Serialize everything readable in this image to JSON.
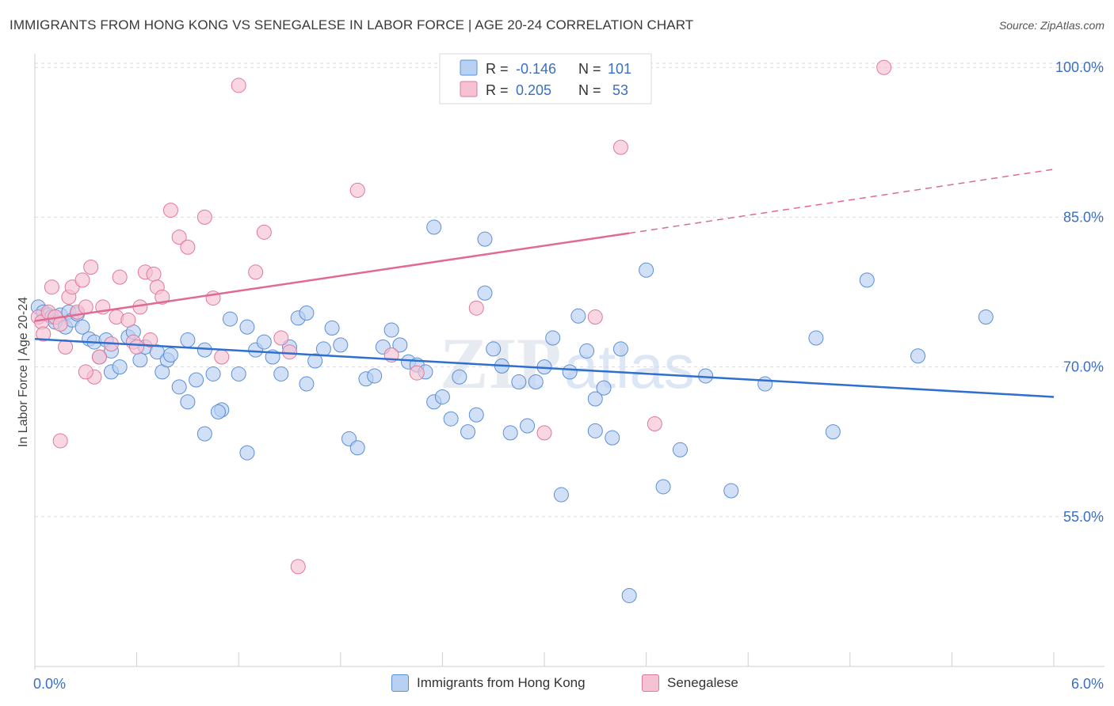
{
  "title": "IMMIGRANTS FROM HONG KONG VS SENEGALESE IN LABOR FORCE | AGE 20-24 CORRELATION CHART",
  "source": "Source: ZipAtlas.com",
  "watermark": {
    "zip": "ZIP",
    "atlas": "atlas"
  },
  "colors": {
    "blue": "#5b8fd6",
    "blue_fill": "#b8d0f2",
    "blue_line": "#2f6fcf",
    "pink": "#e0789a",
    "pink_fill": "#f6c2d3",
    "pink_line": "#e06a92",
    "axis_label": "#3a6fc4",
    "grid": "#dcdcdc"
  },
  "legend": {
    "rows": [
      {
        "r_label": "R =",
        "r_value": "-0.146",
        "n_label": "N =",
        "n_value": "101"
      },
      {
        "r_label": "R =",
        "r_value": "0.205",
        "n_label": "N =",
        "n_value": "53"
      }
    ]
  },
  "bottom_legend": [
    "Immigrants from Hong Kong",
    "Senegalese"
  ],
  "chart_data": {
    "type": "scatter",
    "title": "IMMIGRANTS FROM HONG KONG VS SENEGALESE IN LABOR FORCE | AGE 20-24 CORRELATION CHART",
    "xlabel": "",
    "ylabel": "In Labor Force | Age 20-24",
    "xlim": [
      0.0,
      6.0
    ],
    "ylim": [
      40.0,
      102.0
    ],
    "x_tick_labels": [
      "0.0%",
      "6.0%"
    ],
    "y_ticks": [
      55.0,
      70.0,
      85.0,
      100.0
    ],
    "y_tick_labels": [
      "55.0%",
      "70.0%",
      "85.0%",
      "100.0%"
    ],
    "grid": true,
    "legend_position": "top-center",
    "series": [
      {
        "name": "Immigrants from Hong Kong",
        "r": -0.146,
        "n": 101,
        "trend": {
          "x": [
            0.0,
            6.0
          ],
          "y": [
            72.8,
            67.0
          ]
        },
        "points": [
          [
            0.02,
            76.0
          ],
          [
            0.05,
            75.5
          ],
          [
            0.08,
            75.2
          ],
          [
            0.1,
            75.0
          ],
          [
            0.12,
            74.5
          ],
          [
            0.15,
            75.2
          ],
          [
            0.18,
            74.0
          ],
          [
            0.2,
            75.5
          ],
          [
            0.22,
            74.7
          ],
          [
            0.25,
            75.3
          ],
          [
            0.28,
            74.0
          ],
          [
            0.32,
            72.8
          ],
          [
            0.35,
            72.5
          ],
          [
            0.38,
            71.0
          ],
          [
            0.42,
            72.7
          ],
          [
            0.45,
            69.5
          ],
          [
            0.5,
            70.0
          ],
          [
            0.55,
            73.0
          ],
          [
            0.58,
            73.5
          ],
          [
            0.62,
            70.7
          ],
          [
            0.65,
            72.0
          ],
          [
            0.72,
            71.5
          ],
          [
            0.75,
            69.5
          ],
          [
            0.78,
            70.7
          ],
          [
            0.8,
            71.2
          ],
          [
            0.85,
            68.0
          ],
          [
            0.9,
            72.7
          ],
          [
            0.95,
            68.7
          ],
          [
            1.0,
            71.7
          ],
          [
            1.05,
            69.3
          ],
          [
            1.1,
            65.7
          ],
          [
            1.15,
            74.8
          ],
          [
            1.2,
            69.3
          ],
          [
            1.25,
            74.0
          ],
          [
            1.3,
            71.7
          ],
          [
            1.35,
            72.5
          ],
          [
            1.4,
            71.0
          ],
          [
            1.45,
            69.3
          ],
          [
            1.5,
            72.0
          ],
          [
            1.55,
            74.9
          ],
          [
            1.6,
            75.4
          ],
          [
            1.65,
            70.6
          ],
          [
            1.7,
            71.8
          ],
          [
            1.75,
            73.9
          ],
          [
            1.8,
            72.2
          ],
          [
            1.85,
            62.8
          ],
          [
            1.9,
            61.9
          ],
          [
            1.95,
            68.8
          ],
          [
            2.0,
            69.1
          ],
          [
            2.05,
            72.0
          ],
          [
            2.1,
            73.7
          ],
          [
            2.15,
            72.2
          ],
          [
            2.2,
            70.5
          ],
          [
            2.25,
            70.2
          ],
          [
            2.3,
            69.5
          ],
          [
            2.35,
            66.5
          ],
          [
            2.4,
            67.0
          ],
          [
            2.45,
            64.8
          ],
          [
            2.5,
            69.0
          ],
          [
            2.55,
            63.5
          ],
          [
            2.6,
            65.2
          ],
          [
            2.65,
            77.4
          ],
          [
            2.7,
            71.8
          ],
          [
            2.75,
            70.1
          ],
          [
            2.8,
            63.4
          ],
          [
            2.85,
            68.5
          ],
          [
            2.9,
            64.1
          ],
          [
            2.95,
            68.5
          ],
          [
            3.0,
            70.0
          ],
          [
            3.05,
            72.9
          ],
          [
            3.1,
            57.2
          ],
          [
            3.15,
            69.5
          ],
          [
            3.2,
            75.1
          ],
          [
            3.25,
            71.6
          ],
          [
            3.3,
            63.6
          ],
          [
            3.35,
            67.9
          ],
          [
            3.4,
            62.9
          ],
          [
            3.45,
            71.8
          ],
          [
            3.5,
            47.1
          ],
          [
            3.6,
            79.7
          ],
          [
            3.7,
            58.0
          ],
          [
            3.8,
            61.7
          ],
          [
            3.95,
            69.1
          ],
          [
            4.1,
            57.6
          ],
          [
            4.3,
            68.3
          ],
          [
            4.6,
            72.9
          ],
          [
            4.7,
            63.5
          ],
          [
            4.9,
            78.7
          ],
          [
            5.2,
            71.1
          ],
          [
            5.6,
            75.0
          ],
          [
            0.9,
            66.5
          ],
          [
            1.25,
            61.4
          ],
          [
            2.65,
            82.8
          ],
          [
            2.45,
            98.1
          ],
          [
            3.0,
            100.0
          ],
          [
            2.35,
            84.0
          ],
          [
            1.08,
            65.5
          ],
          [
            3.3,
            66.8
          ],
          [
            1.6,
            68.3
          ],
          [
            1.0,
            63.3
          ],
          [
            0.45,
            71.6
          ]
        ]
      },
      {
        "name": "Senegalese",
        "r": 0.205,
        "n": 53,
        "trend": {
          "x": [
            0.0,
            3.5
          ],
          "y": [
            74.6,
            83.4
          ]
        },
        "trend_extension": {
          "x": [
            3.5,
            6.0
          ],
          "y": [
            83.4,
            89.8
          ]
        },
        "points": [
          [
            0.02,
            75.0
          ],
          [
            0.04,
            74.5
          ],
          [
            0.05,
            73.3
          ],
          [
            0.08,
            75.5
          ],
          [
            0.1,
            78.0
          ],
          [
            0.12,
            75.0
          ],
          [
            0.15,
            74.3
          ],
          [
            0.18,
            72.0
          ],
          [
            0.2,
            77.0
          ],
          [
            0.22,
            78.0
          ],
          [
            0.25,
            75.5
          ],
          [
            0.28,
            78.7
          ],
          [
            0.3,
            76.0
          ],
          [
            0.33,
            80.0
          ],
          [
            0.35,
            69.0
          ],
          [
            0.38,
            71.0
          ],
          [
            0.4,
            76.0
          ],
          [
            0.45,
            72.3
          ],
          [
            0.48,
            75.0
          ],
          [
            0.5,
            79.0
          ],
          [
            0.55,
            74.7
          ],
          [
            0.58,
            72.5
          ],
          [
            0.6,
            72.0
          ],
          [
            0.62,
            76.0
          ],
          [
            0.65,
            79.5
          ],
          [
            0.68,
            72.7
          ],
          [
            0.7,
            79.3
          ],
          [
            0.72,
            78.0
          ],
          [
            0.75,
            77.0
          ],
          [
            0.8,
            85.7
          ],
          [
            0.85,
            83.0
          ],
          [
            0.9,
            82.0
          ],
          [
            1.0,
            85.0
          ],
          [
            1.05,
            76.9
          ],
          [
            1.1,
            71.0
          ],
          [
            1.2,
            98.2
          ],
          [
            1.3,
            79.5
          ],
          [
            1.35,
            83.5
          ],
          [
            1.45,
            72.9
          ],
          [
            1.5,
            71.5
          ],
          [
            1.55,
            50.0
          ],
          [
            1.9,
            87.7
          ],
          [
            2.1,
            71.2
          ],
          [
            2.25,
            69.4
          ],
          [
            2.5,
            100.0
          ],
          [
            2.6,
            75.9
          ],
          [
            3.0,
            63.4
          ],
          [
            3.3,
            75.0
          ],
          [
            3.45,
            92.0
          ],
          [
            3.65,
            64.3
          ],
          [
            5.0,
            100.0
          ],
          [
            0.15,
            62.6
          ],
          [
            0.3,
            69.5
          ]
        ]
      }
    ]
  }
}
